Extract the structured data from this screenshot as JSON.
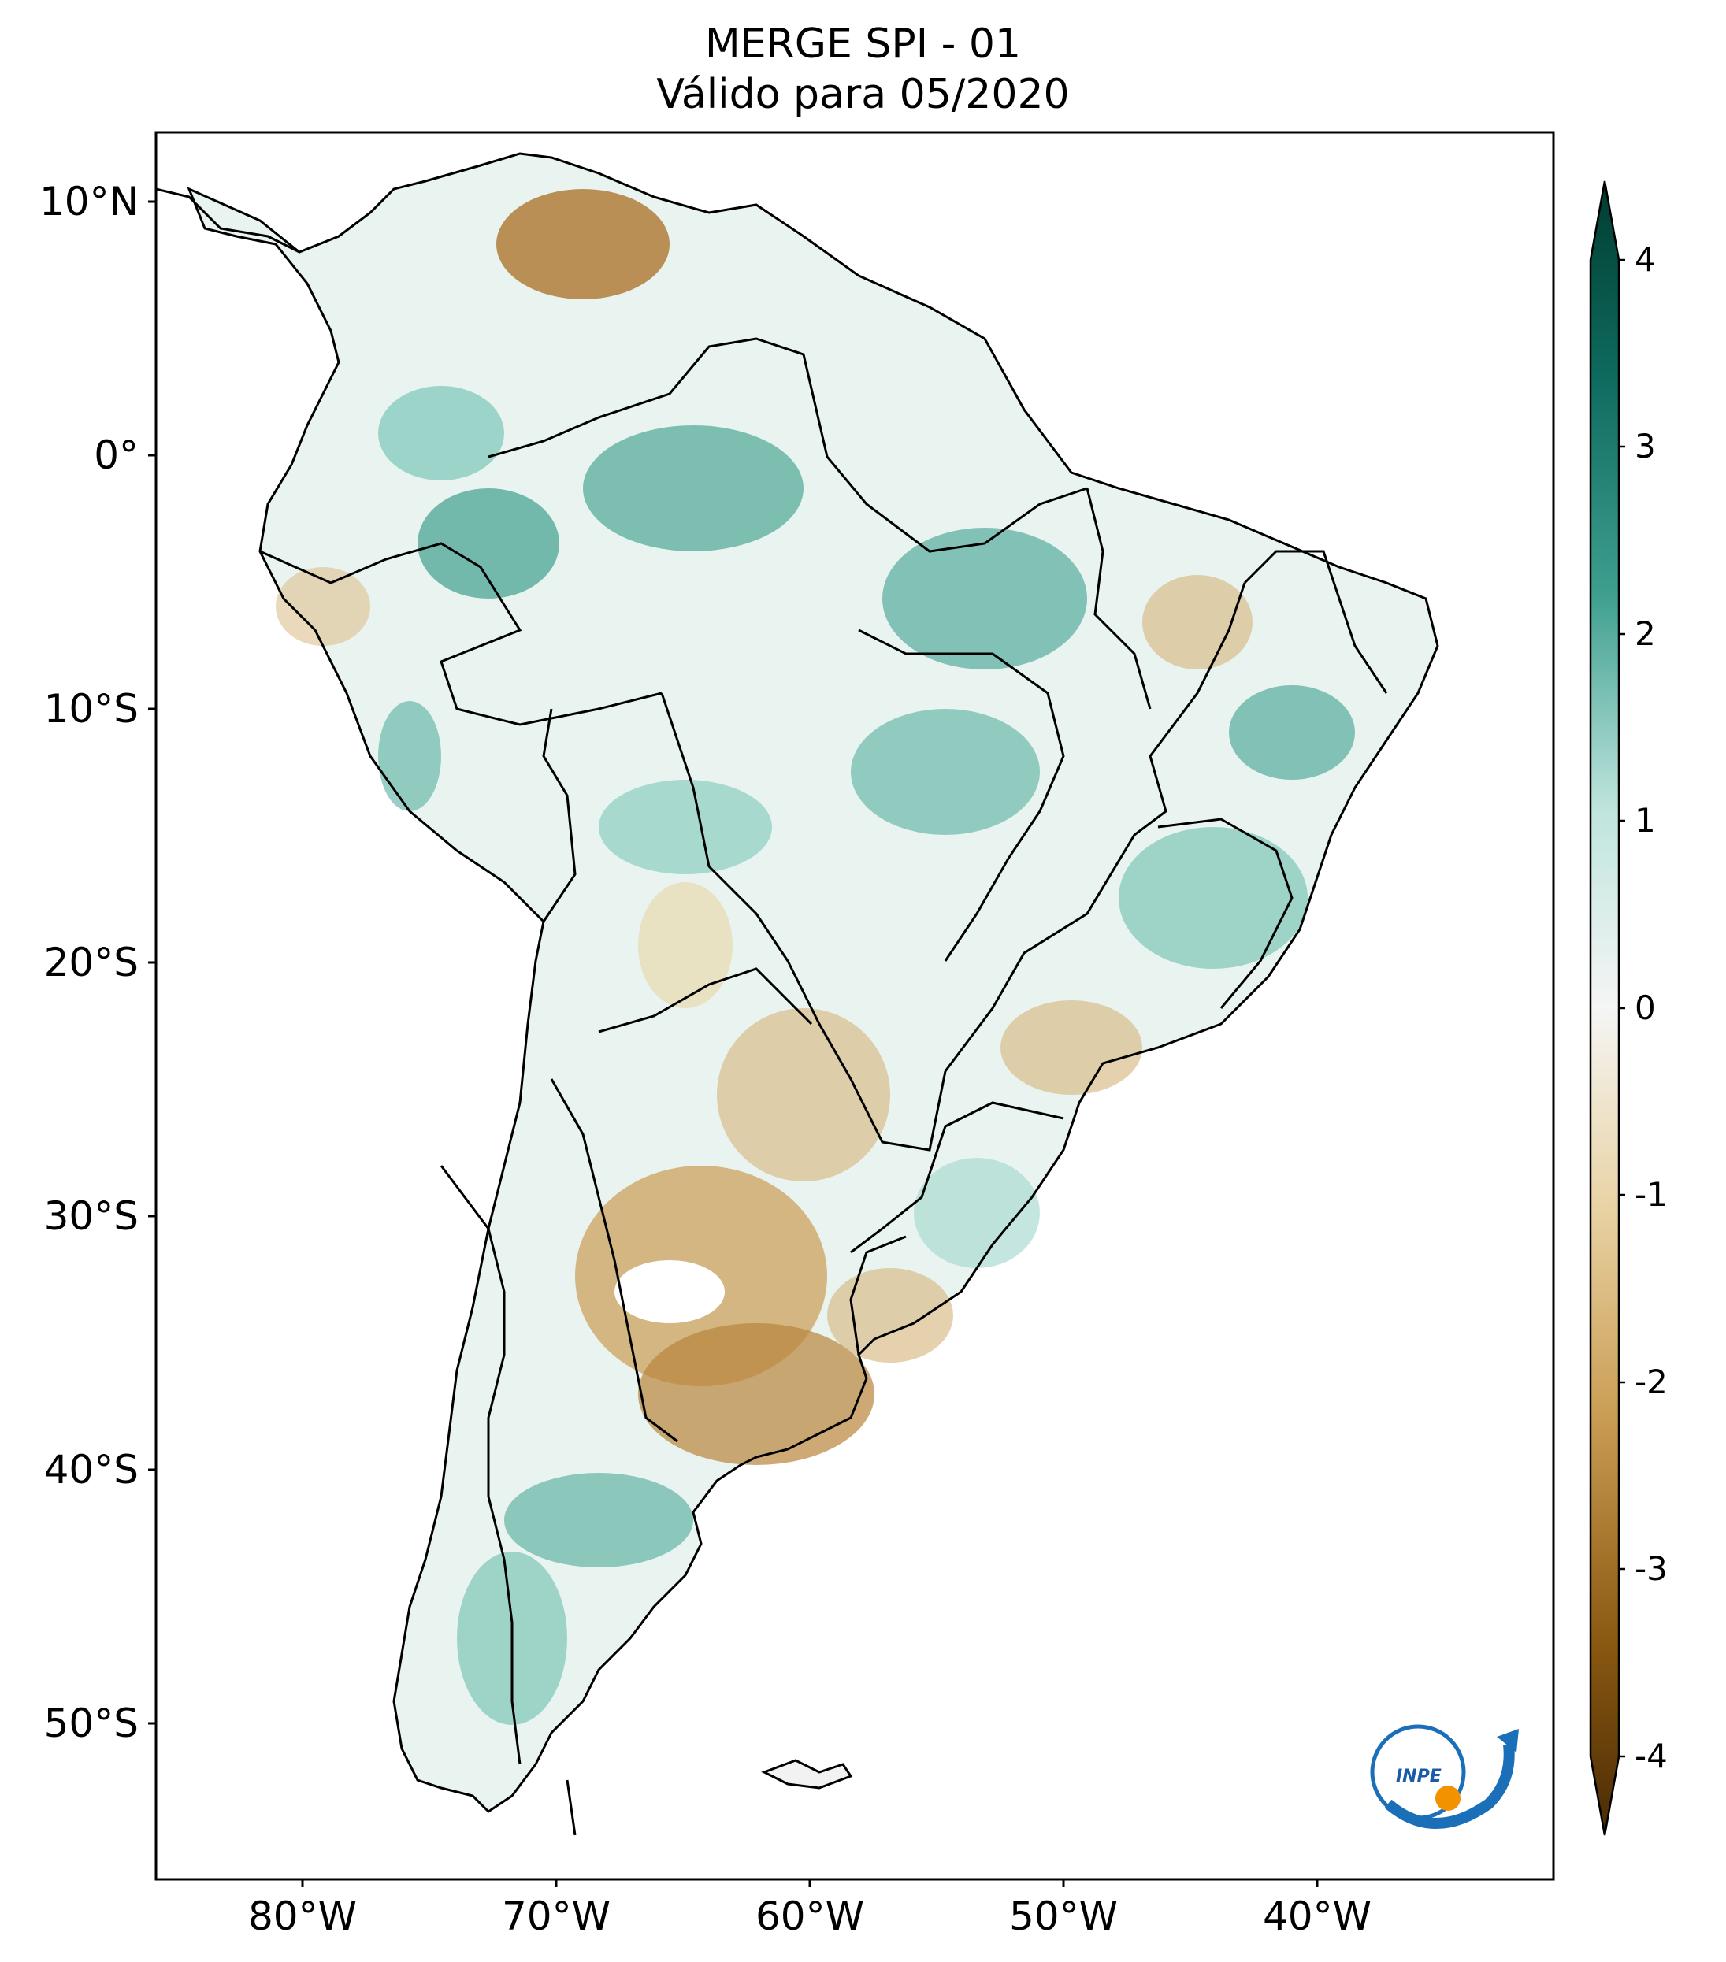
{
  "title": "MERGE   SPI - 01",
  "subtitle": "Válido para 05/2020",
  "latitude_labels": [
    "10°N",
    "0°",
    "10°S",
    "20°S",
    "30°S",
    "40°S",
    "50°S"
  ],
  "longitude_labels": [
    "80°W",
    "70°W",
    "60°W",
    "50°W",
    "40°W"
  ],
  "colorbar": {
    "ticks": [
      "4",
      "3",
      "2",
      "1",
      "0",
      "-1",
      "-2",
      "-3",
      "-4"
    ],
    "range": [
      -4,
      4
    ],
    "colors": {
      "dry_extreme": "#4a2b04",
      "dry": "#b97a2a",
      "dry_light": "#e8d3a4",
      "neutral": "#f5f5f5",
      "wet_light": "#bfe5dd",
      "wet": "#3e9f8f",
      "wet_extreme": "#003c30"
    }
  },
  "logo": {
    "text": "INPE"
  }
}
